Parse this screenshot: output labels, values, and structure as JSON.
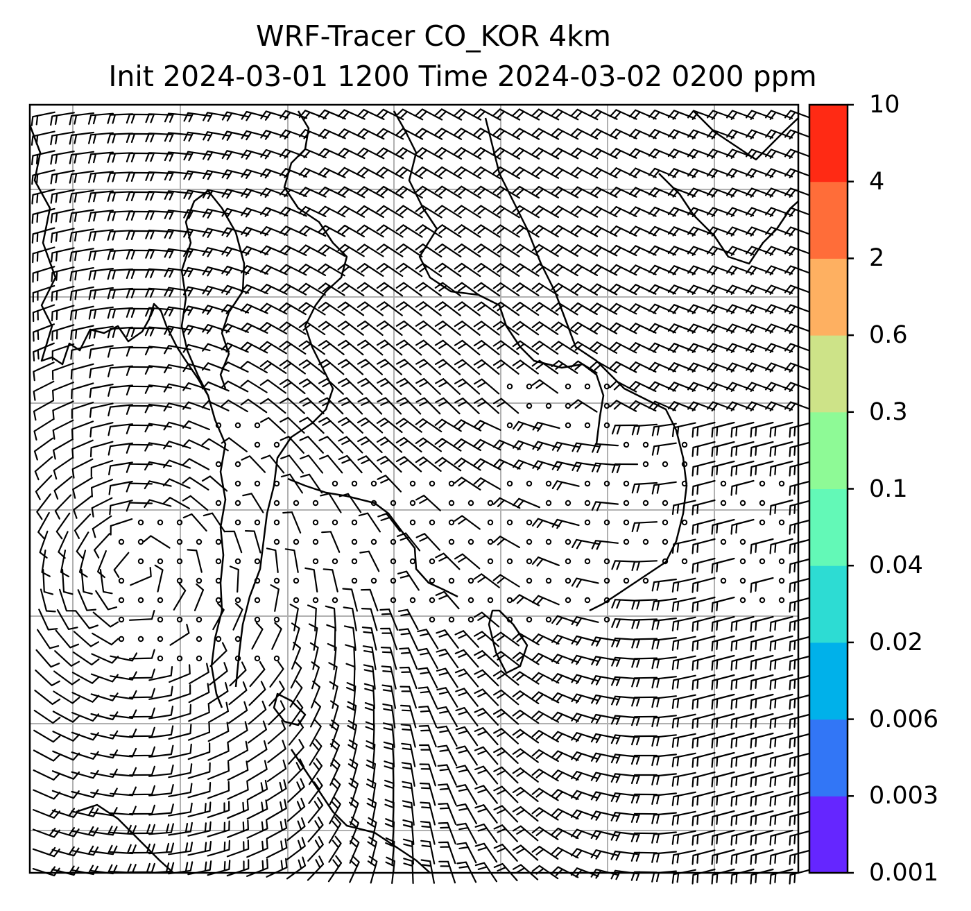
{
  "title": {
    "line1": "WRF-Tracer CO_KOR 4km",
    "line2": "Init 2024-03-01 1200 Time 2024-03-02 0200 ppm"
  },
  "colorbar": {
    "ticks": [
      "0.001",
      "0.003",
      "0.006",
      "0.02",
      "0.04",
      "0.1",
      "0.3",
      "0.6",
      "2",
      "4",
      "10"
    ],
    "colors": [
      "#6526ff",
      "#3276f6",
      "#00b1ea",
      "#2ddcd3",
      "#63f9b7",
      "#8efa96",
      "#cde388",
      "#feb061",
      "#ff6d39",
      "#ff2a14"
    ]
  },
  "map": {
    "background": "#ffffff",
    "gridline_color": "#b0b0b0",
    "coastline_color": "#000000",
    "wind_barb_color": "#000000",
    "tracer_field": "none visible (below 0.001 ppm)"
  }
}
